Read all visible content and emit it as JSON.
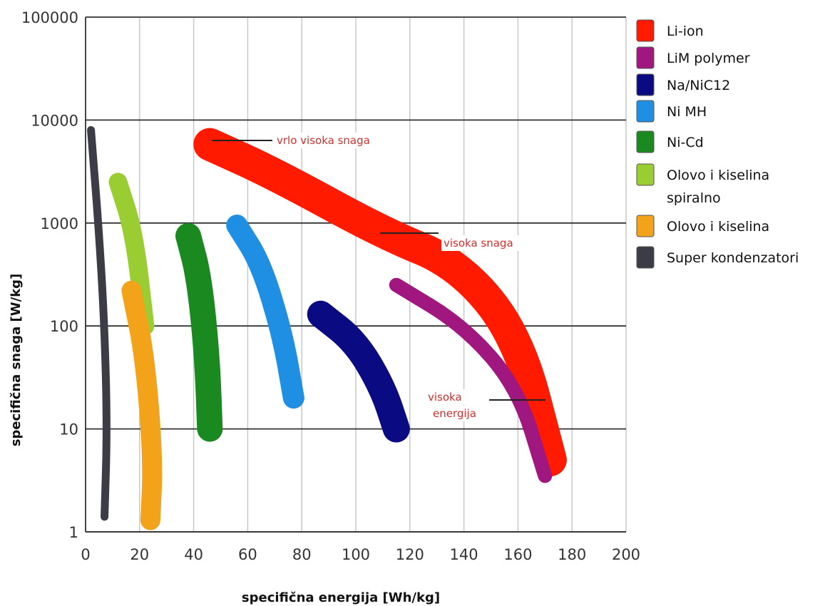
{
  "chart_data": {
    "type": "area",
    "xlabel": "specifična energija [Wh/kg]",
    "ylabel": "specifična snaga [W/kg]",
    "xlim": [
      0,
      200
    ],
    "ylim": [
      1,
      100000
    ],
    "yscale": "log",
    "grid": true,
    "legend_position": "right",
    "x_ticks": [
      "0",
      "20",
      "40",
      "60",
      "80",
      "100",
      "120",
      "140",
      "160",
      "180",
      "200"
    ],
    "y_ticks": [
      "1",
      "10",
      "100",
      "1000",
      "10000",
      "100000"
    ],
    "series": [
      {
        "name": "Li-ion",
        "color": "#ff1a00",
        "points": [
          [
            46,
            5800
          ],
          [
            70,
            3000
          ],
          [
            110,
            800
          ],
          [
            138,
            400
          ],
          [
            160,
            80
          ],
          [
            172,
            5
          ]
        ]
      },
      {
        "name": "LiM polymer",
        "color": "#a0187f",
        "points": [
          [
            115,
            250
          ],
          [
            140,
            100
          ],
          [
            160,
            25
          ],
          [
            170,
            3.5
          ]
        ]
      },
      {
        "name": "Na/NiC12",
        "color": "#0a0a82",
        "points": [
          [
            87,
            130
          ],
          [
            100,
            70
          ],
          [
            110,
            25
          ],
          [
            115,
            10
          ]
        ]
      },
      {
        "name": "Ni MH",
        "color": "#1e8fe3",
        "points": [
          [
            56,
            950
          ],
          [
            65,
            400
          ],
          [
            73,
            80
          ],
          [
            77,
            20
          ]
        ]
      },
      {
        "name": "Ni-Cd",
        "color": "#1a8a20",
        "points": [
          [
            38,
            750
          ],
          [
            42,
            300
          ],
          [
            45,
            50
          ],
          [
            46,
            10
          ]
        ]
      },
      {
        "name": "Olovo i kiselina spiralno",
        "color": "#9acd32",
        "points": [
          [
            12,
            2500
          ],
          [
            18,
            800
          ],
          [
            22,
            100
          ]
        ]
      },
      {
        "name": "Olovo i kiselina",
        "color": "#f2a31a",
        "points": [
          [
            17,
            220
          ],
          [
            22,
            50
          ],
          [
            25,
            5
          ],
          [
            24,
            1.3
          ]
        ]
      },
      {
        "name": "Super kondenzatori",
        "color": "#3c3c46",
        "points": [
          [
            2,
            8000
          ],
          [
            5,
            800
          ],
          [
            7,
            100
          ],
          [
            8,
            10
          ],
          [
            7,
            1.4
          ]
        ]
      }
    ],
    "annotations": [
      {
        "text": "vrlo visoka snaga",
        "x": 47,
        "y": 6300
      },
      {
        "text": "visoka snaga",
        "x": 110,
        "y": 800
      },
      {
        "text": "visoka",
        "x": 120,
        "y": 25
      },
      {
        "text": "energija",
        "x": 120,
        "y": 25
      }
    ]
  },
  "legend": [
    {
      "label": "Li-ion",
      "color": "#ff1a00"
    },
    {
      "label": "LiM polymer",
      "color": "#a0187f"
    },
    {
      "label": "Na/NiC12",
      "color": "#0a0a82"
    },
    {
      "label": "Ni MH",
      "color": "#1e8fe3"
    },
    {
      "label": "Ni-Cd",
      "color": "#1a8a20"
    },
    {
      "label": "Olovo i kiselina",
      "label2": "spiralno",
      "color": "#9acd32"
    },
    {
      "label": "Olovo i kiselina",
      "color": "#f2a31a"
    },
    {
      "label": "Super kondenzatori",
      "color": "#3c3c46"
    }
  ]
}
